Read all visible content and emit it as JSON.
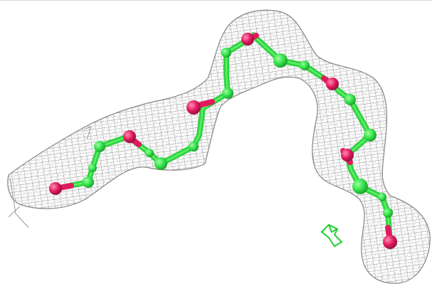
{
  "scene": {
    "description_colors": {
      "background": "#ffffff",
      "mesh": "#8f8f8f",
      "carbon": "#33e14a",
      "oxygen": "#e2195f",
      "ligand_fragment": "#1fd02e"
    },
    "icons": [
      "electron-density-mesh",
      "molecule-chain",
      "ligand-fragment"
    ]
  }
}
